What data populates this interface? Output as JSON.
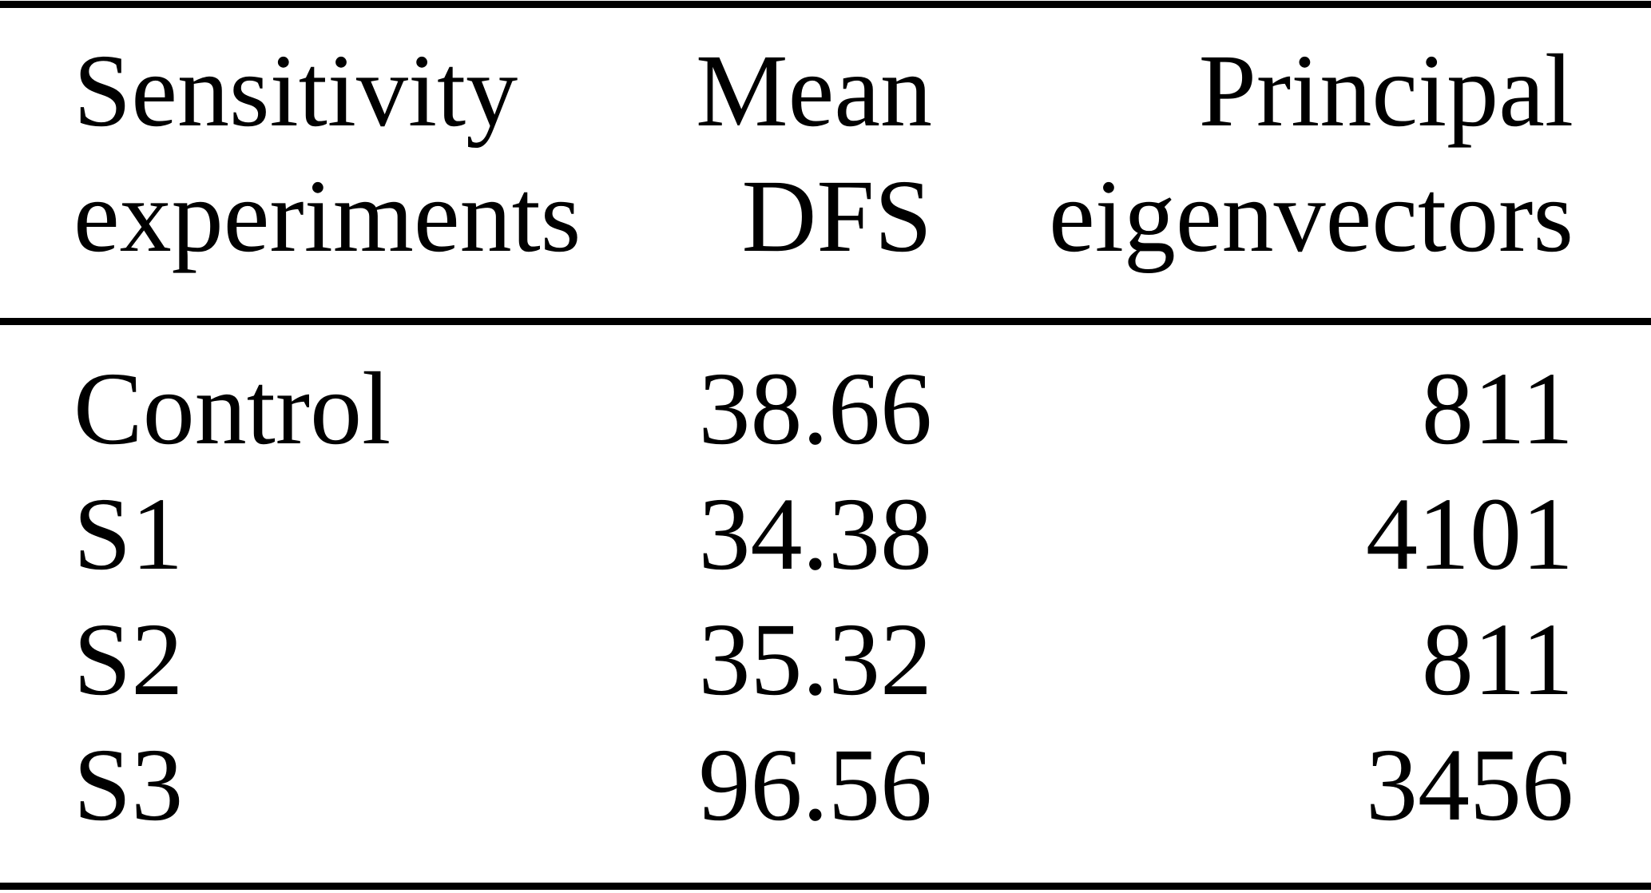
{
  "table": {
    "header": {
      "col1": {
        "line1": "Sensitivity",
        "line2": "experiments"
      },
      "col2": {
        "line1": "Mean",
        "line2": "DFS"
      },
      "col3": {
        "line1": "Principal",
        "line2": "eigenvectors"
      }
    },
    "rows": [
      {
        "experiment": "Control",
        "mean_dfs": "38.66",
        "principal_eigenvectors": "811"
      },
      {
        "experiment": "S1",
        "mean_dfs": "34.38",
        "principal_eigenvectors": "4101"
      },
      {
        "experiment": "S2",
        "mean_dfs": "35.32",
        "principal_eigenvectors": "811"
      },
      {
        "experiment": "S3",
        "mean_dfs": "96.56",
        "principal_eigenvectors": "3456"
      }
    ]
  },
  "colors": {
    "text": "#000000",
    "background": "#ffffff",
    "rule": "#000000"
  },
  "chart_data": {
    "type": "table",
    "columns": [
      "Sensitivity experiments",
      "Mean DFS",
      "Principal eigenvectors"
    ],
    "rows": [
      [
        "Control",
        38.66,
        811
      ],
      [
        "S1",
        34.38,
        4101
      ],
      [
        "S2",
        35.32,
        811
      ],
      [
        "S3",
        96.56,
        3456
      ]
    ]
  }
}
